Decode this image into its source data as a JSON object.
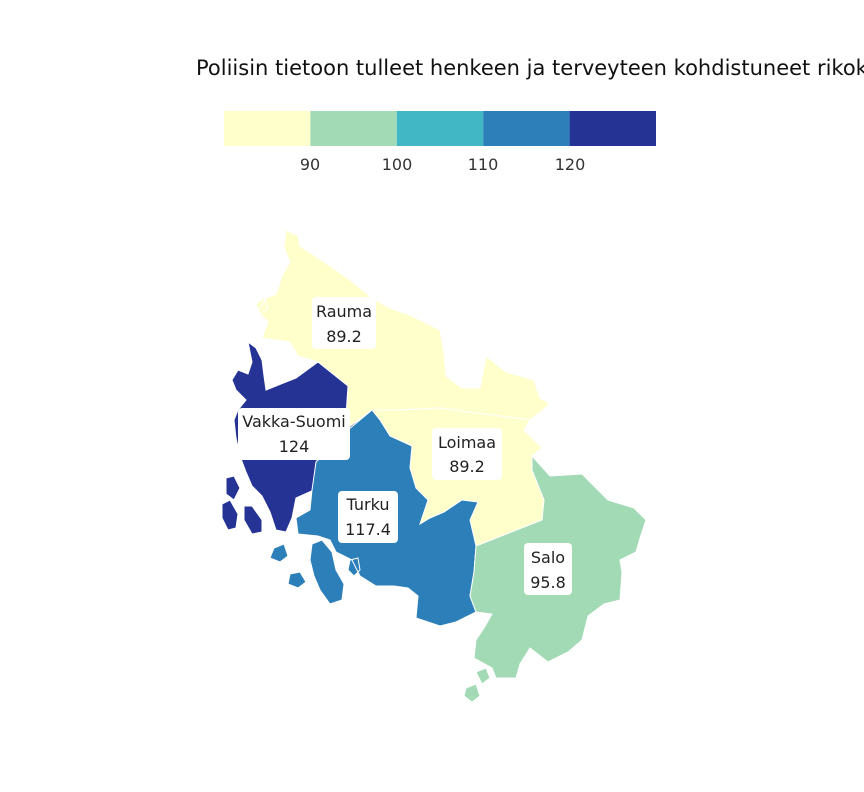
{
  "title": "Poliisin tietoon tulleet henkeen ja terveyteen kohdistuneet rikokset",
  "legend": {
    "colors": [
      "#ffffcc",
      "#a1dab4",
      "#41b6c4",
      "#2c7fb8",
      "#253494"
    ],
    "ticks": [
      "90",
      "100",
      "110",
      "120"
    ]
  },
  "regions": [
    {
      "name": "Rauma",
      "value": "89.2",
      "color": "#ffffcc"
    },
    {
      "name": "Vakka-Suomi",
      "value": "124",
      "color": "#253494"
    },
    {
      "name": "Loimaa",
      "value": "89.2",
      "color": "#ffffcc"
    },
    {
      "name": "Turku",
      "value": "117.4",
      "color": "#2c7fb8"
    },
    {
      "name": "Salo",
      "value": "95.8",
      "color": "#a1dab4"
    }
  ]
}
